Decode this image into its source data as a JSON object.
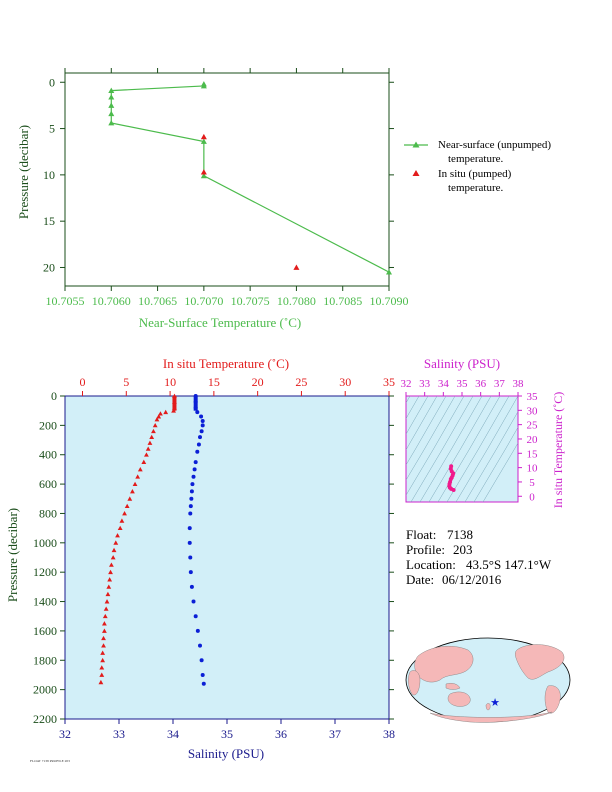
{
  "colors": {
    "green": "#4cbb4c",
    "axis_green": "#1a4d1a",
    "red": "#e21b1b",
    "blue": "#0b1fd6",
    "magenta": "#cc22cc",
    "navy": "#1a1a8c",
    "panel_bg": "#d2eff8",
    "land": "#f5b8b8",
    "ocean": "#d2eff8",
    "pink_trace": "#f01a8c"
  },
  "info": {
    "float_label": "Float:",
    "float_value": "7138",
    "profile_label": "Profile:",
    "profile_value": "203",
    "location_label": "Location:",
    "location_value": "43.5°S  147.1°W",
    "date_label": "Date:",
    "date_value": "06/12/2016"
  },
  "footer_tiny": "FLOAT 7138 PROFILE 203",
  "chart_data": [
    {
      "type": "line",
      "title": "",
      "xlabel": "Near-Surface Temperature (˚C)",
      "ylabel": "Pressure (decibar)",
      "xlim": [
        10.7055,
        10.709
      ],
      "ylim": [
        22,
        -1
      ],
      "x_ticks": [
        "10.7055",
        "10.7060",
        "10.7065",
        "10.7070",
        "10.7075",
        "10.7080",
        "10.7085",
        "10.7090"
      ],
      "y_ticks": [
        "0",
        "5",
        "10",
        "15",
        "20"
      ],
      "series": [
        {
          "name": "Near-surface (unpumped) temperature.",
          "marker": "triangle",
          "style": "line",
          "points": [
            [
              10.707,
              0.2
            ],
            [
              10.707,
              0.4
            ],
            [
              10.706,
              0.9
            ],
            [
              10.706,
              1.6
            ],
            [
              10.706,
              2.5
            ],
            [
              10.706,
              3.4
            ],
            [
              10.706,
              4.4
            ],
            [
              10.707,
              6.4
            ],
            [
              10.707,
              10.1
            ],
            [
              10.709,
              20.5
            ]
          ]
        },
        {
          "name": "In situ (pumped) temperature.",
          "marker": "triangle",
          "style": "points",
          "points": [
            [
              10.707,
              5.9
            ],
            [
              10.707,
              9.7
            ],
            [
              10.708,
              20.0
            ]
          ]
        }
      ],
      "legend": [
        {
          "line1": "Near-surface (unpumped)",
          "line2": "temperature."
        },
        {
          "line1": "In situ (pumped)",
          "line2": "temperature."
        }
      ]
    },
    {
      "type": "scatter",
      "title": "",
      "x_top_label": "In situ Temperature (˚C)",
      "x_bottom_label": "Salinity (PSU)",
      "ylabel": "Pressure (decibar)",
      "temp_xlim": [
        -2,
        35
      ],
      "sal_xlim": [
        32,
        38
      ],
      "ylim": [
        2200,
        0
      ],
      "temp_ticks": [
        "0",
        "5",
        "10",
        "15",
        "20",
        "25",
        "30",
        "35"
      ],
      "sal_ticks": [
        "32",
        "33",
        "34",
        "35",
        "36",
        "37",
        "38"
      ],
      "y_ticks": [
        "0",
        "200",
        "400",
        "600",
        "800",
        "1000",
        "1200",
        "1400",
        "1600",
        "1800",
        "2000",
        "2200"
      ],
      "temperature_profile": [
        [
          10.5,
          0
        ],
        [
          10.5,
          40
        ],
        [
          10.5,
          80
        ],
        [
          10.4,
          100
        ],
        [
          9.5,
          110
        ],
        [
          8.9,
          120
        ],
        [
          8.7,
          140
        ],
        [
          8.5,
          160
        ],
        [
          8.3,
          200
        ],
        [
          8.1,
          240
        ],
        [
          7.9,
          280
        ],
        [
          7.7,
          320
        ],
        [
          7.5,
          360
        ],
        [
          7.3,
          400
        ],
        [
          7.0,
          450
        ],
        [
          6.6,
          500
        ],
        [
          6.3,
          550
        ],
        [
          6.0,
          600
        ],
        [
          5.7,
          650
        ],
        [
          5.4,
          700
        ],
        [
          5.1,
          750
        ],
        [
          4.8,
          800
        ],
        [
          4.5,
          850
        ],
        [
          4.3,
          900
        ],
        [
          4.0,
          950
        ],
        [
          3.8,
          1000
        ],
        [
          3.6,
          1050
        ],
        [
          3.5,
          1100
        ],
        [
          3.3,
          1150
        ],
        [
          3.2,
          1200
        ],
        [
          3.1,
          1250
        ],
        [
          3.0,
          1300
        ],
        [
          2.9,
          1350
        ],
        [
          2.8,
          1400
        ],
        [
          2.7,
          1450
        ],
        [
          2.6,
          1500
        ],
        [
          2.5,
          1550
        ],
        [
          2.5,
          1600
        ],
        [
          2.4,
          1650
        ],
        [
          2.4,
          1700
        ],
        [
          2.3,
          1750
        ],
        [
          2.3,
          1800
        ],
        [
          2.2,
          1850
        ],
        [
          2.2,
          1900
        ],
        [
          2.1,
          1950
        ]
      ],
      "salinity_profile": [
        [
          34.42,
          0
        ],
        [
          34.42,
          40
        ],
        [
          34.42,
          80
        ],
        [
          34.45,
          110
        ],
        [
          34.52,
          140
        ],
        [
          34.55,
          170
        ],
        [
          34.55,
          200
        ],
        [
          34.53,
          240
        ],
        [
          34.5,
          280
        ],
        [
          34.48,
          330
        ],
        [
          34.45,
          380
        ],
        [
          34.42,
          450
        ],
        [
          34.4,
          500
        ],
        [
          34.38,
          550
        ],
        [
          34.36,
          600
        ],
        [
          34.35,
          650
        ],
        [
          34.34,
          700
        ],
        [
          34.33,
          750
        ],
        [
          34.32,
          800
        ],
        [
          34.31,
          900
        ],
        [
          34.31,
          1000
        ],
        [
          34.32,
          1100
        ],
        [
          34.33,
          1200
        ],
        [
          34.35,
          1300
        ],
        [
          34.38,
          1400
        ],
        [
          34.42,
          1500
        ],
        [
          34.46,
          1600
        ],
        [
          34.5,
          1700
        ],
        [
          34.53,
          1800
        ],
        [
          34.55,
          1900
        ],
        [
          34.57,
          1960
        ]
      ]
    },
    {
      "type": "scatter",
      "title": "",
      "xlabel": "Salinity (PSU)",
      "ylabel": "In situ Temperature (˚C)",
      "xlim": [
        32,
        38
      ],
      "ylim": [
        -2,
        35
      ],
      "x_ticks": [
        "32",
        "33",
        "34",
        "35",
        "36",
        "37",
        "38"
      ],
      "y_ticks": [
        "0",
        "5",
        "10",
        "15",
        "20",
        "25",
        "30",
        "35"
      ],
      "ts_points": [
        [
          34.42,
          10.5
        ],
        [
          34.4,
          9.6
        ],
        [
          34.45,
          8.7
        ],
        [
          34.53,
          8.0
        ],
        [
          34.5,
          7.3
        ],
        [
          34.45,
          6.5
        ],
        [
          34.4,
          6.0
        ],
        [
          34.36,
          5.0
        ],
        [
          34.33,
          4.3
        ],
        [
          34.32,
          3.6
        ],
        [
          34.35,
          3.0
        ],
        [
          34.42,
          2.6
        ],
        [
          34.55,
          2.2
        ]
      ]
    }
  ]
}
